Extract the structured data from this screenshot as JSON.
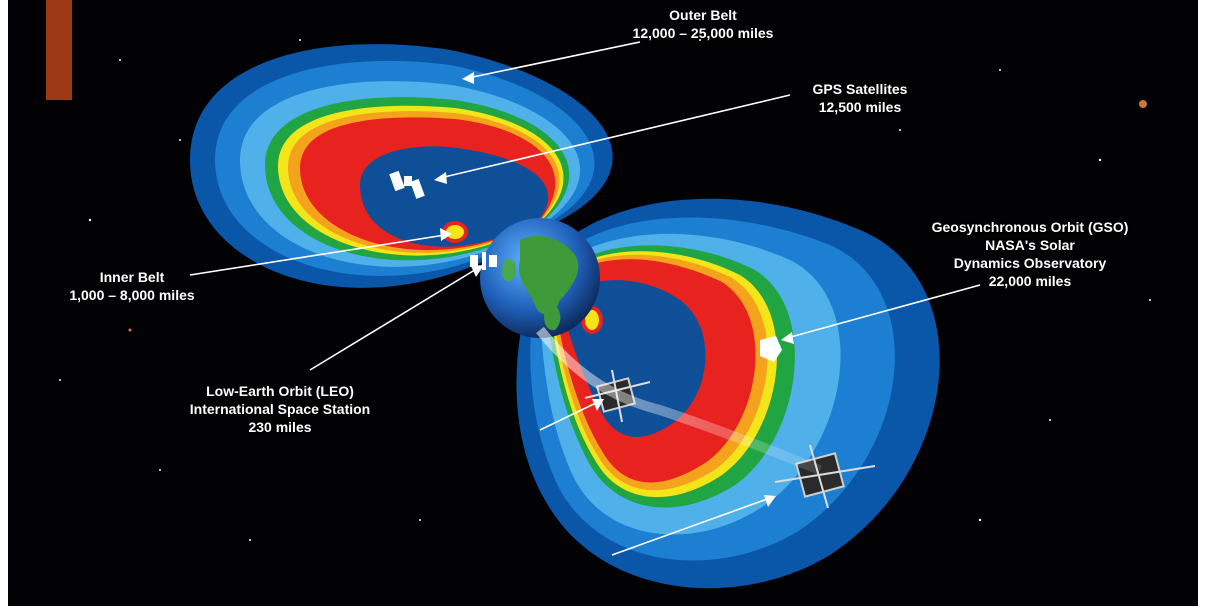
{
  "labels": {
    "outer_belt": {
      "title": "Outer Belt",
      "range": "12,000 – 25,000 miles"
    },
    "gps": {
      "title": "GPS Satellites",
      "range": "12,500 miles"
    },
    "gso": {
      "line1": "Geosynchronous Orbit (GSO)",
      "line2": "NASA's Solar",
      "line3": "Dynamics Observatory",
      "range": "22,000 miles"
    },
    "inner_belt": {
      "title": "Inner Belt",
      "range": "1,000 – 8,000 miles"
    },
    "leo": {
      "line1": "Low-Earth Orbit (LEO)",
      "line2": "International Space Station",
      "range": "230 miles"
    }
  },
  "colors": {
    "space": "#020204",
    "outer_dark": "#0a56a8",
    "outer_mid": "#1c7fd2",
    "outer_light": "#4fb0ea",
    "green": "#21a543",
    "yellow": "#f4e41a",
    "orange": "#f5a21c",
    "red": "#e8221e",
    "arrow": "#ffffff"
  }
}
